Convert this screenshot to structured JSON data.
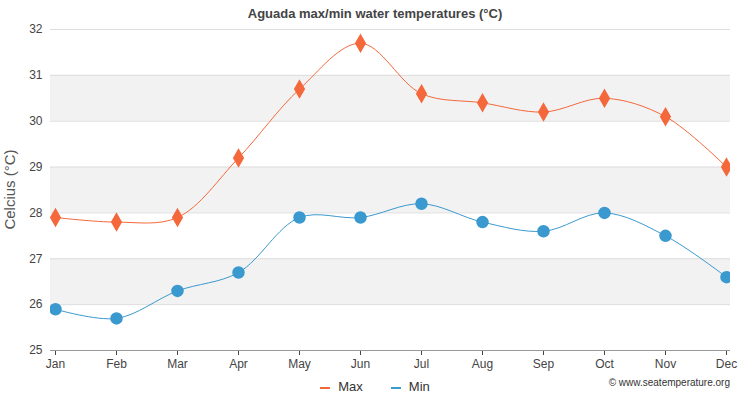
{
  "chart_data": {
    "type": "line",
    "title": "Aguada max/min water temperatures (°C)",
    "y_label": "Celcius (°C)",
    "categories": [
      "Jan",
      "Feb",
      "Mar",
      "Apr",
      "May",
      "Jun",
      "Jul",
      "Aug",
      "Sep",
      "Oct",
      "Nov",
      "Dec"
    ],
    "series": [
      {
        "name": "Max",
        "color": "#f4683c",
        "marker": "diamond",
        "values": [
          27.9,
          27.8,
          27.9,
          29.2,
          30.7,
          31.7,
          30.6,
          30.4,
          30.2,
          30.5,
          30.1,
          29.0
        ]
      },
      {
        "name": "Min",
        "color": "#3a99cf",
        "marker": "circle",
        "values": [
          25.9,
          25.7,
          26.3,
          26.7,
          27.9,
          27.9,
          28.2,
          27.8,
          27.6,
          28.0,
          27.5,
          26.6
        ]
      }
    ],
    "ylim": [
      25,
      32
    ],
    "yticks": [
      25,
      26,
      27,
      28,
      29,
      30,
      31,
      32
    ],
    "grid": true,
    "legend": "bottom",
    "annotations": [
      "© www.seatemperature.org"
    ]
  }
}
